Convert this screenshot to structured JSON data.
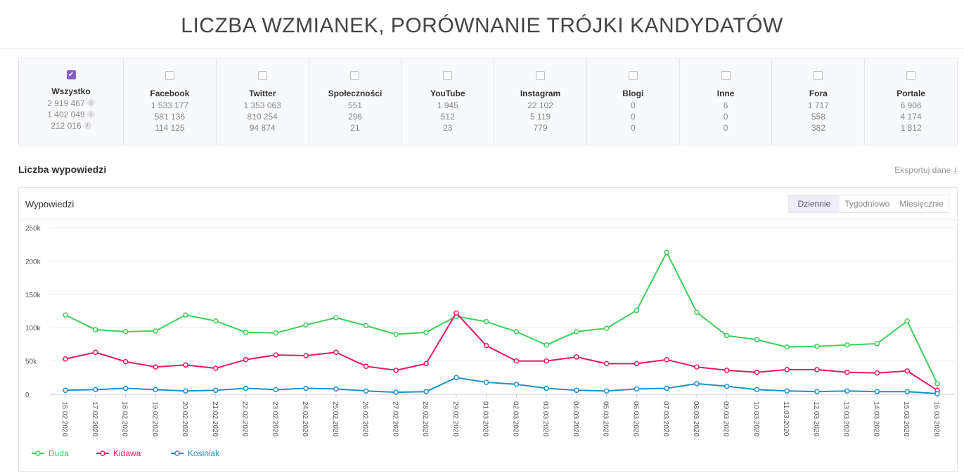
{
  "title": "LICZBA WZMIANEK, PORÓWNANIE TRÓJKI KANDYDATÓW",
  "sources": [
    {
      "label": "Wszystko",
      "checked": true,
      "values": [
        "2 919 467",
        "1 402 049",
        "212 016"
      ]
    },
    {
      "label": "Facebook",
      "checked": false,
      "values": [
        "1 533 177",
        "581 136",
        "114 125"
      ]
    },
    {
      "label": "Twitter",
      "checked": false,
      "values": [
        "1 353 063",
        "810 254",
        "94 874"
      ]
    },
    {
      "label": "Społeczności",
      "checked": false,
      "values": [
        "551",
        "296",
        "21"
      ]
    },
    {
      "label": "YouTube",
      "checked": false,
      "values": [
        "1 945",
        "512",
        "23"
      ]
    },
    {
      "label": "Instagram",
      "checked": false,
      "values": [
        "22 102",
        "5 119",
        "779"
      ]
    },
    {
      "label": "Blogi",
      "checked": false,
      "values": [
        "0",
        "0",
        "0"
      ]
    },
    {
      "label": "Inne",
      "checked": false,
      "values": [
        "6",
        "0",
        "0"
      ]
    },
    {
      "label": "Fora",
      "checked": false,
      "values": [
        "1 717",
        "558",
        "382"
      ]
    },
    {
      "label": "Portale",
      "checked": false,
      "values": [
        "6 906",
        "4 174",
        "1 812"
      ]
    }
  ],
  "section_title": "Liczba wypowiedzi",
  "export_label": "Eksportuj dane",
  "card_title": "Wypowiedzi",
  "tabs": [
    "Dziennie",
    "Tygodniowo",
    "Miesięcznie"
  ],
  "chart_data": {
    "type": "line",
    "title": "Wypowiedzi",
    "ylim": [
      0,
      250000
    ],
    "yticks": [
      "0",
      "50k",
      "100k",
      "150k",
      "200k",
      "250k"
    ],
    "x": [
      "16.02.2020",
      "17.02.2020",
      "18.02.2020",
      "19.02.2020",
      "20.02.2020",
      "21.02.2020",
      "22.02.2020",
      "23.02.2020",
      "24.02.2020",
      "25.02.2020",
      "26.02.2020",
      "27.02.2020",
      "28.02.2020",
      "29.02.2020",
      "01.03.2020",
      "02.03.2020",
      "03.03.2020",
      "04.03.2020",
      "05.03.2020",
      "06.03.2020",
      "07.03.2020",
      "08.03.2020",
      "09.03.2020",
      "10.03.2020",
      "11.03.2020",
      "12.03.2020",
      "13.03.2020",
      "14.03.2020",
      "15.03.2020",
      "16.03.2020"
    ],
    "legend": "bottom-left",
    "series": [
      {
        "name": "Duda",
        "color": "#3ecf5a",
        "values": [
          119000,
          97000,
          94000,
          95000,
          119000,
          110000,
          93000,
          92000,
          104000,
          115000,
          103000,
          90000,
          93000,
          117000,
          109000,
          94000,
          74000,
          94000,
          99000,
          126000,
          213000,
          123000,
          88000,
          82000,
          71000,
          72000,
          74000,
          76000,
          110000,
          16000
        ]
      },
      {
        "name": "Kidawa",
        "color": "#ef1565",
        "values": [
          53000,
          63000,
          49000,
          41000,
          44000,
          39000,
          52000,
          59000,
          58000,
          63000,
          42000,
          36000,
          46000,
          122000,
          73000,
          50000,
          50000,
          56000,
          46000,
          46000,
          52000,
          41000,
          36000,
          33000,
          37000,
          37000,
          33000,
          32000,
          35000,
          6000
        ]
      },
      {
        "name": "Kosiniak",
        "color": "#1e90c8",
        "values": [
          6000,
          7000,
          9000,
          7000,
          5000,
          6000,
          9000,
          7000,
          9000,
          8000,
          5000,
          3000,
          4000,
          25000,
          18000,
          15000,
          9000,
          6000,
          5000,
          8000,
          9000,
          16000,
          12000,
          7000,
          5000,
          4000,
          5000,
          4000,
          4000,
          1000
        ]
      }
    ]
  }
}
